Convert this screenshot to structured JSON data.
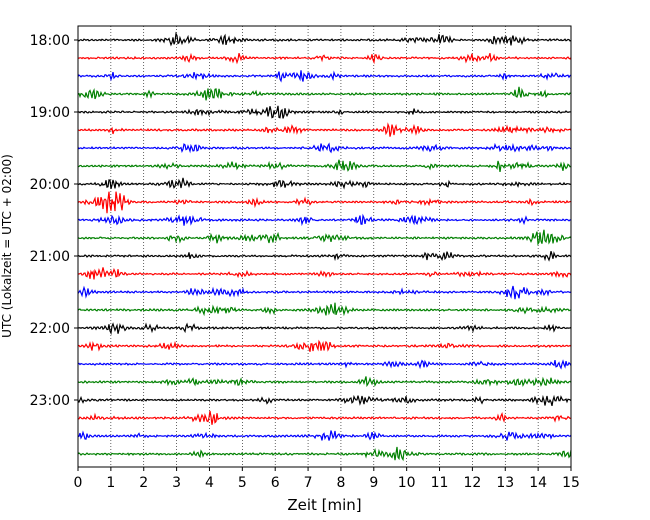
{
  "chart_data": {
    "type": "line",
    "title": "",
    "xlabel": "Zeit  [min]",
    "ylabel": "UTC (Lokalzeit = UTC + 02:00)",
    "xlim": [
      0,
      15
    ],
    "x_ticks": [
      "0",
      "1",
      "2",
      "3",
      "4",
      "5",
      "6",
      "7",
      "8",
      "9",
      "10",
      "11",
      "12",
      "13",
      "14",
      "15"
    ],
    "y_ticks": [
      "18:00",
      "19:00",
      "20:00",
      "21:00",
      "22:00",
      "23:00"
    ],
    "trace_interval_min": 15,
    "trace_count": 24,
    "trace_colors": [
      "#000000",
      "#ff0000",
      "#0000ff",
      "#008000"
    ],
    "vertical_grid": "dotted",
    "traces": [
      {
        "start": "18:00",
        "color": "#000000"
      },
      {
        "start": "18:15",
        "color": "#ff0000"
      },
      {
        "start": "18:30",
        "color": "#0000ff"
      },
      {
        "start": "18:45",
        "color": "#008000"
      },
      {
        "start": "19:00",
        "color": "#000000"
      },
      {
        "start": "19:15",
        "color": "#ff0000"
      },
      {
        "start": "19:30",
        "color": "#0000ff"
      },
      {
        "start": "19:45",
        "color": "#008000"
      },
      {
        "start": "20:00",
        "color": "#000000"
      },
      {
        "start": "20:15",
        "color": "#ff0000"
      },
      {
        "start": "20:30",
        "color": "#0000ff"
      },
      {
        "start": "20:45",
        "color": "#008000"
      },
      {
        "start": "21:00",
        "color": "#000000"
      },
      {
        "start": "21:15",
        "color": "#ff0000"
      },
      {
        "start": "21:30",
        "color": "#0000ff"
      },
      {
        "start": "21:45",
        "color": "#008000"
      },
      {
        "start": "22:00",
        "color": "#000000"
      },
      {
        "start": "22:15",
        "color": "#ff0000"
      },
      {
        "start": "22:30",
        "color": "#0000ff"
      },
      {
        "start": "22:45",
        "color": "#008000"
      },
      {
        "start": "23:00",
        "color": "#000000"
      },
      {
        "start": "23:15",
        "color": "#ff0000"
      },
      {
        "start": "23:30",
        "color": "#0000ff"
      },
      {
        "start": "23:45",
        "color": "#008000"
      }
    ]
  }
}
